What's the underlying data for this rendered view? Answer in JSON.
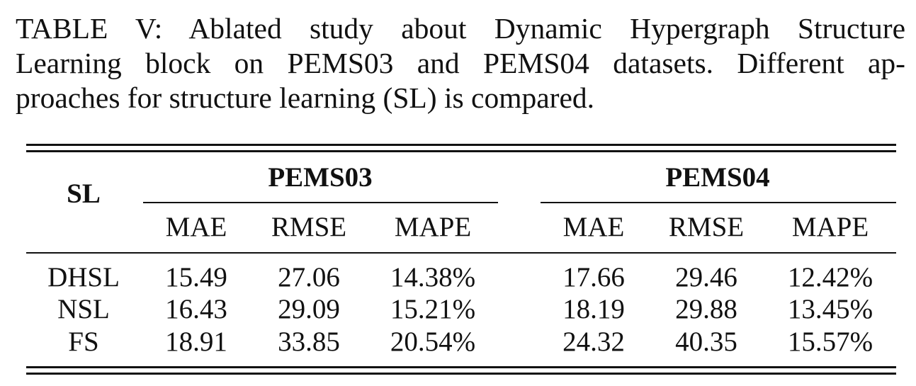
{
  "caption": {
    "lines": [
      "TABLE V: Ablated study about Dynamic Hypergraph Structure",
      "Learning block on PEMS03 and PEMS04 datasets. Different ap-",
      "proaches for structure learning (SL) is compared."
    ]
  },
  "table": {
    "row_header": "SL",
    "groups": [
      "PEMS03",
      "PEMS04"
    ],
    "metrics": [
      "MAE",
      "RMSE",
      "MAPE",
      "MAE",
      "RMSE",
      "MAPE"
    ],
    "rows": [
      {
        "name": "DHSL",
        "values": [
          "15.49",
          "27.06",
          "14.38%",
          "17.66",
          "29.46",
          "12.42%"
        ]
      },
      {
        "name": "NSL",
        "values": [
          "16.43",
          "29.09",
          "15.21%",
          "18.19",
          "29.88",
          "13.45%"
        ]
      },
      {
        "name": "FS",
        "values": [
          "18.91",
          "33.85",
          "20.54%",
          "24.32",
          "40.35",
          "15.57%"
        ]
      }
    ]
  }
}
